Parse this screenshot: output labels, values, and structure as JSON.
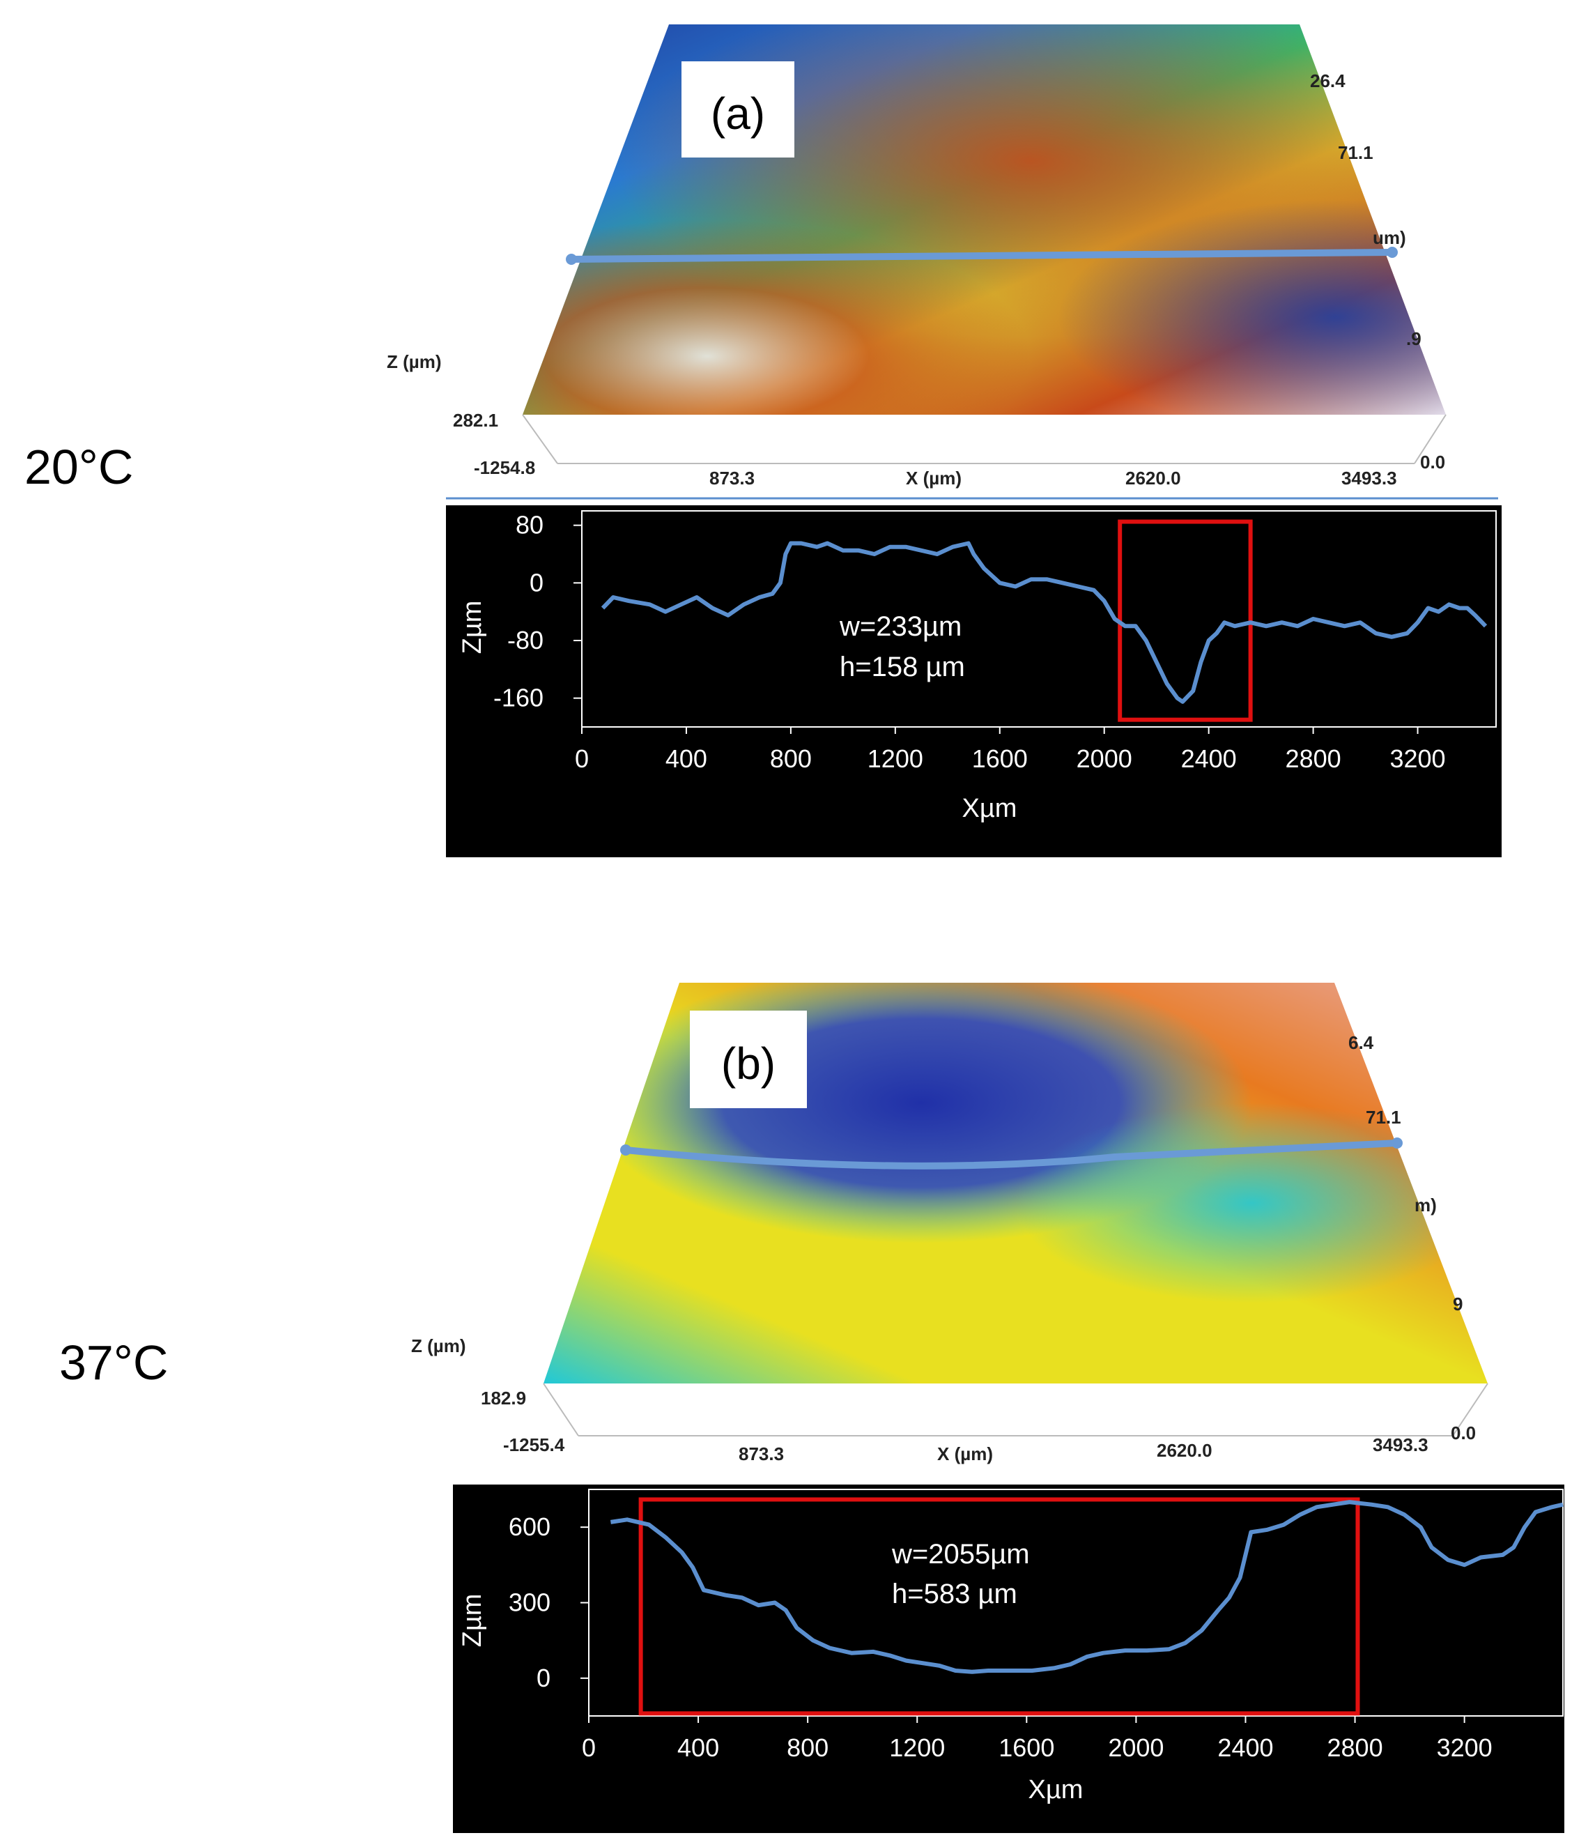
{
  "figure": {
    "rows": [
      {
        "temperature": "20°C",
        "panel_label": "(a)",
        "surface": {
          "z_axis_label": "Z (µm)",
          "z_value": "282.1",
          "x_axis_label": "X (µm)",
          "y_start": "-1254.8",
          "x_ticks": [
            "873.3",
            "2620.0",
            "3493.3"
          ],
          "corner_zero": "0.0",
          "right_partial_labels": [
            "26.4",
            "71.1",
            "um)",
            ".9"
          ],
          "colors": [
            "#1f3fa0",
            "#2a7ad0",
            "#38b86a",
            "#d8c030",
            "#c84a1a",
            "#f0e8f0"
          ]
        },
        "annotation": {
          "w": "w=233µm",
          "h": "h=158 µm"
        }
      },
      {
        "temperature": "37°C",
        "panel_label": "(b)",
        "surface": {
          "z_axis_label": "Z (µm)",
          "z_value": "182.9",
          "x_axis_label": "X (µm)",
          "y_start": "-1255.4",
          "x_ticks": [
            "873.3",
            "2620.0",
            "3493.3"
          ],
          "corner_zero": "0.0",
          "right_partial_labels": [
            "6.4",
            "71.1",
            "m)",
            "9"
          ],
          "colors": [
            "#2030a8",
            "#20c8d8",
            "#e8e020",
            "#e87a20",
            "#e8a8a0"
          ]
        },
        "annotation": {
          "w": "w=2055µm",
          "h": "h=583 µm"
        }
      }
    ]
  },
  "chart_data": [
    {
      "type": "line",
      "xlabel": "Xµm",
      "ylabel": "Zµm",
      "xlim": [
        0,
        3500
      ],
      "ylim": [
        -200,
        100
      ],
      "x_ticks": [
        0,
        400,
        800,
        1200,
        1600,
        2000,
        2400,
        2800,
        3200
      ],
      "y_ticks": [
        80,
        0,
        -80,
        -160
      ],
      "highlight_box": {
        "x_from": 2060,
        "x_to": 2560,
        "y_from": -190,
        "y_to": 85
      },
      "series": [
        {
          "color": "#5b8fcf",
          "points": [
            [
              80,
              -35
            ],
            [
              120,
              -20
            ],
            [
              180,
              -25
            ],
            [
              260,
              -30
            ],
            [
              320,
              -40
            ],
            [
              380,
              -30
            ],
            [
              440,
              -20
            ],
            [
              500,
              -35
            ],
            [
              560,
              -45
            ],
            [
              620,
              -30
            ],
            [
              680,
              -20
            ],
            [
              730,
              -15
            ],
            [
              760,
              0
            ],
            [
              780,
              40
            ],
            [
              800,
              55
            ],
            [
              840,
              55
            ],
            [
              900,
              50
            ],
            [
              940,
              55
            ],
            [
              1000,
              45
            ],
            [
              1060,
              45
            ],
            [
              1120,
              40
            ],
            [
              1180,
              50
            ],
            [
              1240,
              50
            ],
            [
              1300,
              45
            ],
            [
              1360,
              40
            ],
            [
              1420,
              50
            ],
            [
              1480,
              55
            ],
            [
              1500,
              40
            ],
            [
              1540,
              20
            ],
            [
              1600,
              0
            ],
            [
              1660,
              -5
            ],
            [
              1720,
              5
            ],
            [
              1780,
              5
            ],
            [
              1840,
              0
            ],
            [
              1900,
              -5
            ],
            [
              1960,
              -10
            ],
            [
              2000,
              -25
            ],
            [
              2040,
              -50
            ],
            [
              2080,
              -60
            ],
            [
              2120,
              -60
            ],
            [
              2160,
              -80
            ],
            [
              2200,
              -110
            ],
            [
              2240,
              -140
            ],
            [
              2280,
              -160
            ],
            [
              2300,
              -165
            ],
            [
              2340,
              -150
            ],
            [
              2370,
              -110
            ],
            [
              2400,
              -80
            ],
            [
              2430,
              -70
            ],
            [
              2460,
              -55
            ],
            [
              2500,
              -60
            ],
            [
              2560,
              -55
            ],
            [
              2620,
              -60
            ],
            [
              2680,
              -55
            ],
            [
              2740,
              -60
            ],
            [
              2800,
              -50
            ],
            [
              2860,
              -55
            ],
            [
              2920,
              -60
            ],
            [
              2980,
              -55
            ],
            [
              3040,
              -70
            ],
            [
              3100,
              -75
            ],
            [
              3160,
              -70
            ],
            [
              3200,
              -55
            ],
            [
              3240,
              -35
            ],
            [
              3280,
              -40
            ],
            [
              3320,
              -30
            ],
            [
              3360,
              -35
            ],
            [
              3390,
              -35
            ],
            [
              3420,
              -45
            ],
            [
              3460,
              -60
            ]
          ]
        }
      ]
    },
    {
      "type": "line",
      "xlabel": "Xµm",
      "ylabel": "Zµm",
      "xlim": [
        0,
        3560
      ],
      "ylim": [
        -150,
        750
      ],
      "x_ticks": [
        0,
        400,
        800,
        1200,
        1600,
        2000,
        2400,
        2800,
        3200
      ],
      "y_ticks": [
        600,
        300,
        0
      ],
      "highlight_box": {
        "x_from": 190,
        "x_to": 2810,
        "y_from": -140,
        "y_to": 710
      },
      "series": [
        {
          "color": "#5b8fcf",
          "points": [
            [
              80,
              620
            ],
            [
              140,
              630
            ],
            [
              220,
              610
            ],
            [
              280,
              560
            ],
            [
              340,
              500
            ],
            [
              380,
              440
            ],
            [
              420,
              350
            ],
            [
              500,
              330
            ],
            [
              560,
              320
            ],
            [
              620,
              290
            ],
            [
              680,
              300
            ],
            [
              720,
              270
            ],
            [
              760,
              200
            ],
            [
              820,
              150
            ],
            [
              880,
              120
            ],
            [
              960,
              100
            ],
            [
              1040,
              105
            ],
            [
              1100,
              90
            ],
            [
              1160,
              70
            ],
            [
              1220,
              60
            ],
            [
              1280,
              50
            ],
            [
              1340,
              30
            ],
            [
              1400,
              25
            ],
            [
              1460,
              30
            ],
            [
              1540,
              30
            ],
            [
              1620,
              30
            ],
            [
              1700,
              40
            ],
            [
              1760,
              55
            ],
            [
              1820,
              85
            ],
            [
              1880,
              100
            ],
            [
              1960,
              110
            ],
            [
              2040,
              110
            ],
            [
              2120,
              115
            ],
            [
              2180,
              140
            ],
            [
              2240,
              190
            ],
            [
              2300,
              270
            ],
            [
              2340,
              320
            ],
            [
              2380,
              400
            ],
            [
              2420,
              580
            ],
            [
              2480,
              590
            ],
            [
              2540,
              610
            ],
            [
              2600,
              650
            ],
            [
              2660,
              680
            ],
            [
              2720,
              690
            ],
            [
              2780,
              700
            ],
            [
              2860,
              690
            ],
            [
              2920,
              680
            ],
            [
              2980,
              650
            ],
            [
              3040,
              600
            ],
            [
              3080,
              520
            ],
            [
              3140,
              470
            ],
            [
              3200,
              450
            ],
            [
              3260,
              480
            ],
            [
              3340,
              490
            ],
            [
              3380,
              520
            ],
            [
              3420,
              600
            ],
            [
              3460,
              660
            ],
            [
              3520,
              680
            ],
            [
              3560,
              690
            ]
          ]
        }
      ]
    }
  ]
}
